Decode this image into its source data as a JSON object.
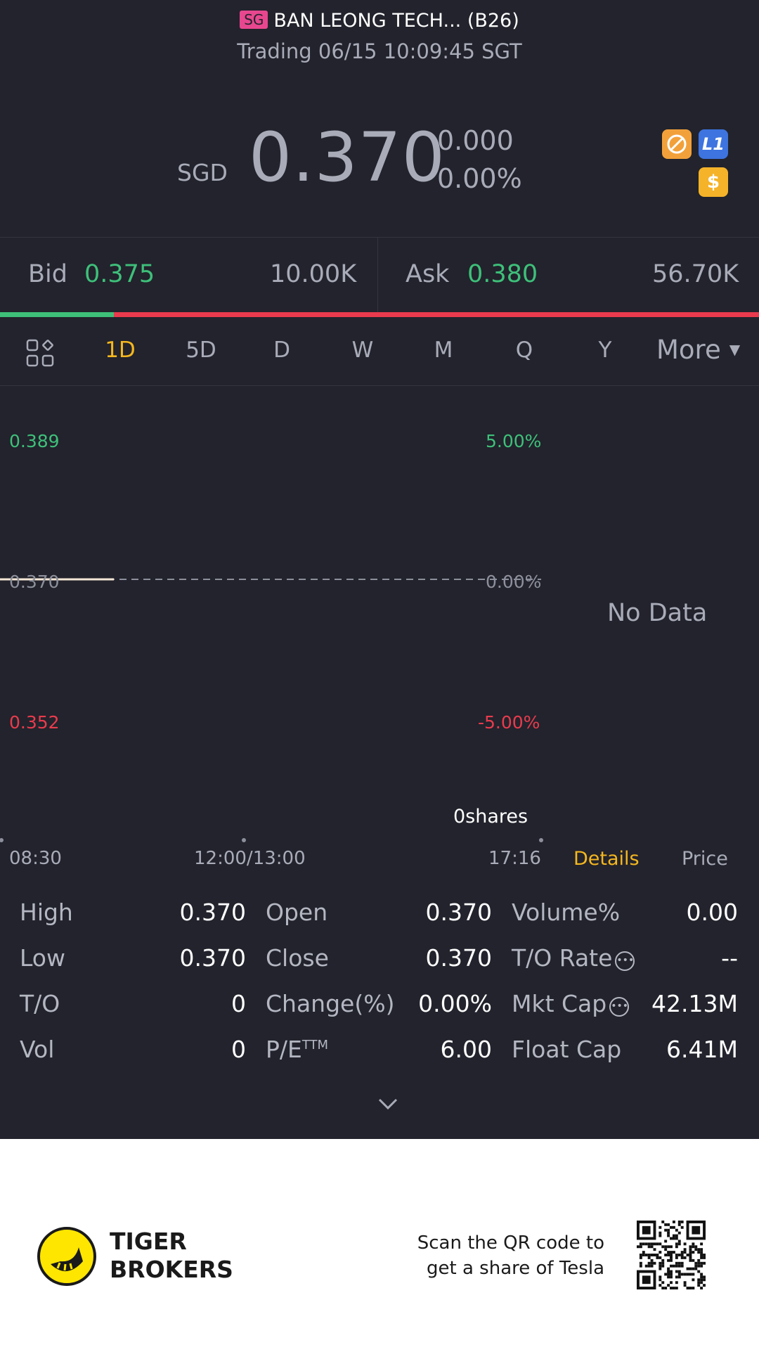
{
  "header": {
    "region": "SG",
    "title": "BAN LEONG TECH... (B26)",
    "status_line": "Trading 06/15 10:09:45 SGT"
  },
  "quote": {
    "currency": "SGD",
    "price": "0.370",
    "change": "0.000",
    "change_pct": "0.00%",
    "badge_l1": "L1",
    "badge_dollar": "$"
  },
  "bidask": {
    "bid_label": "Bid",
    "bid_price": "0.375",
    "bid_volume": "10.00K",
    "ask_label": "Ask",
    "ask_price": "0.380",
    "ask_volume": "56.70K",
    "bid_share": 0.15
  },
  "tabs": {
    "items": [
      "1D",
      "5D",
      "D",
      "W",
      "M",
      "Q",
      "Y"
    ],
    "active": "1D",
    "more_label": "More"
  },
  "chart": {
    "price_high": "0.389",
    "price_mid": "0.370",
    "price_low": "0.352",
    "pct_high": "5.00%",
    "pct_mid": "0.00%",
    "pct_low": "-5.00%",
    "no_data": "No Data",
    "shares": "0shares",
    "time_start": "08:30",
    "time_mid": "12:00/13:00",
    "time_end": "17:16",
    "tab_details": "Details",
    "tab_price": "Price"
  },
  "stats": {
    "col1": [
      {
        "label": "High",
        "value": "0.370"
      },
      {
        "label": "Low",
        "value": "0.370"
      },
      {
        "label": "T/O",
        "value": "0"
      },
      {
        "label": "Vol",
        "value": "0"
      }
    ],
    "col2": [
      {
        "label": "Open",
        "value": "0.370"
      },
      {
        "label": "Close",
        "value": "0.370"
      },
      {
        "label": "Change(%)",
        "value": "0.00%"
      },
      {
        "label": "P/E",
        "sup": "TTM",
        "value": "6.00"
      }
    ],
    "col3": [
      {
        "label": "Volume%",
        "value": "0.00"
      },
      {
        "label": "T/O Rate",
        "value": "--"
      },
      {
        "label": "Mkt Cap",
        "value": "42.13M"
      },
      {
        "label": "Float Cap",
        "value": "6.41M"
      }
    ]
  },
  "footer": {
    "brand_line1": "TIGER",
    "brand_line2": "BROKERS",
    "scan_line1": "Scan the QR code to",
    "scan_line2": "get a share of Tesla"
  }
}
